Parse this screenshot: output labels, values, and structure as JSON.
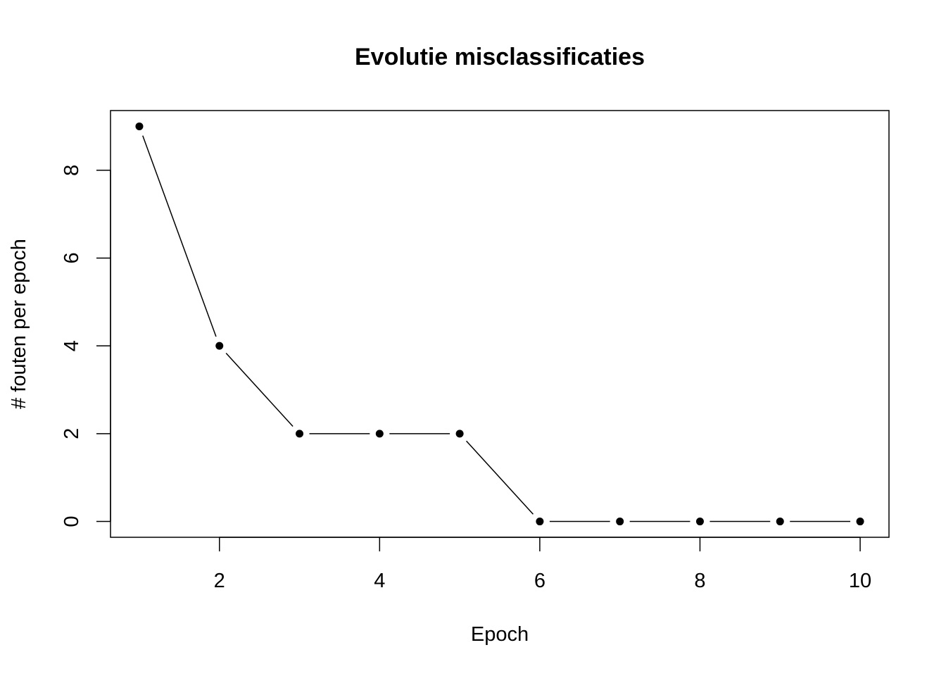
{
  "chart_data": {
    "type": "line",
    "title": "Evolutie misclassificaties",
    "xlabel": "Epoch",
    "ylabel": "# fouten per epoch",
    "x": [
      1,
      2,
      3,
      4,
      5,
      6,
      7,
      8,
      9,
      10
    ],
    "series": [
      {
        "values": [
          9,
          4,
          2,
          2,
          2,
          0,
          0,
          0,
          0,
          0
        ]
      }
    ],
    "xlim": [
      0.64,
      10.36
    ],
    "ylim": [
      -0.36,
      9.36
    ],
    "xticks": [
      2,
      4,
      6,
      8,
      10
    ],
    "yticks": [
      0,
      2,
      4,
      6,
      8
    ],
    "grid": false,
    "point_style": "filled-circle",
    "line_style": "gapped",
    "colors": {
      "line": "#000000",
      "points": "#000000",
      "axes": "#000000",
      "background": "#ffffff"
    }
  }
}
